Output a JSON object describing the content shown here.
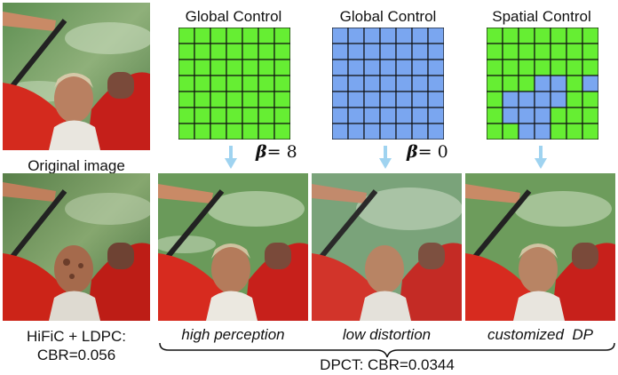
{
  "original_label": "Original image",
  "baseline_label_line1": "HiFiC + LDPC:",
  "baseline_label_line2": "CBR=0.056",
  "panels": [
    {
      "title": "Global Control",
      "fill": "#66ee33",
      "beta_label": "β",
      "beta_value": "= 8",
      "caption": "high perception"
    },
    {
      "title": "Global Control",
      "fill": "#7aa6f0",
      "beta_label": "β",
      "beta_value": "= 0",
      "caption": "low distortion"
    },
    {
      "title": "Spatial Control",
      "fill": "#66ee33",
      "alt_fill": "#7aa6f0",
      "caption_main": "customized",
      "caption_tail": "DP"
    }
  ],
  "dpct_label": "DPCT:  CBR=0.0344",
  "colors": {
    "green": "#66ee33",
    "blue": "#7aa6f0",
    "arrow": "#9fd3f0",
    "grid_line": "#111111"
  }
}
